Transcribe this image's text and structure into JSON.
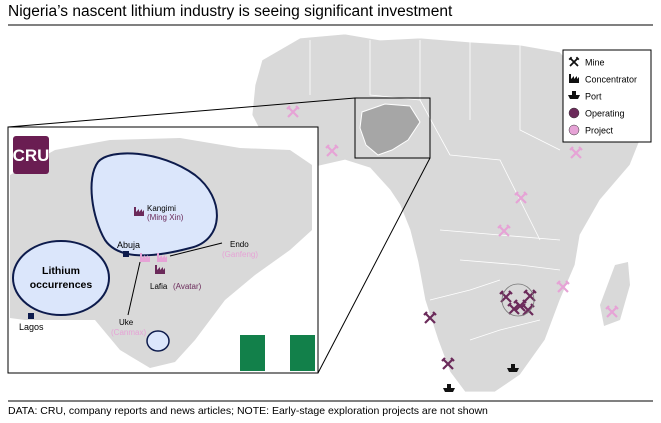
{
  "title": "Nigeria’s nascent lithium industry is seeing significant investment",
  "legend": {
    "items": [
      {
        "label": "Mine"
      },
      {
        "label": "Concentrator"
      },
      {
        "label": "Port"
      },
      {
        "label": "Operating",
        "color": "#6b2a5a"
      },
      {
        "label": "Project",
        "color": "#e6a3d6"
      }
    ]
  },
  "inset": {
    "logo": "CRU",
    "region_label": [
      "Lithium",
      "occurrences"
    ],
    "places": [
      {
        "name": "Kangimi",
        "company": "(Ming Xin)"
      },
      {
        "name": "Abuja"
      },
      {
        "name": "Endo",
        "company": "(Ganfeng)"
      },
      {
        "name": "Lafia",
        "company": "(Avatar)"
      },
      {
        "name": "Uke",
        "company": "(Canmax)"
      },
      {
        "name": "Lagos"
      }
    ]
  },
  "footnote": "DATA: CRU, company reports and news articles; NOTE: Early-stage exploration projects are not shown"
}
